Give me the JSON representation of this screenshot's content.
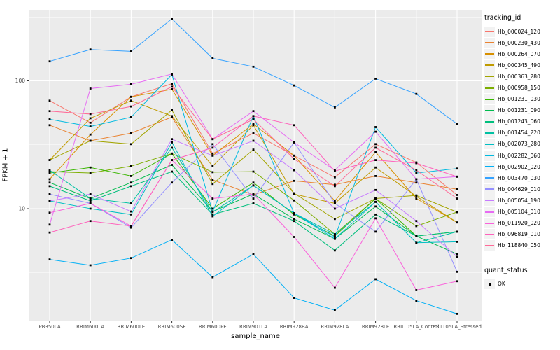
{
  "figure": {
    "panel_background": "#EBEBEB",
    "grid_color": "#FFFFFF",
    "tick_color": "#333333",
    "tick_label_color": "#4D4D4D",
    "point_color": "#000000"
  },
  "legend": {
    "tracking_title": "tracking_id",
    "quant_title": "quant_status",
    "quant_items": [
      {
        "label": "OK"
      }
    ]
  },
  "chart_data": {
    "type": "line",
    "title": "",
    "xlabel": "sample_name",
    "ylabel": "FPKM + 1",
    "y_scale": "log10",
    "ylim": [
      1.3,
      360
    ],
    "y_ticks": [
      10,
      100
    ],
    "grid": "on",
    "legend_position": "right",
    "marker": {
      "shape": "square",
      "color": "#000000",
      "legend_label": "OK"
    },
    "categories": [
      "PB350LA",
      "RRIM600LA",
      "RRIM600LE",
      "RRIM600SE",
      "RRIM600PE",
      "RRIM901LA",
      "RRIM928BA",
      "RRIM928LA",
      "RRIM928LE",
      "RRII105LA_Control",
      "RRII105LA_Stressed"
    ],
    "series": [
      {
        "name": "Hb_000024_120",
        "color": "#F8766D",
        "values": [
          70,
          47,
          75,
          95,
          27,
          39,
          26,
          17.6,
          32,
          23,
          12.8
        ]
      },
      {
        "name": "Hb_000230_430",
        "color": "#EA8331",
        "values": [
          45,
          34,
          39,
          52,
          16.8,
          12.8,
          16.5,
          15.4,
          18,
          16,
          14.2
        ]
      },
      {
        "name": "Hb_000264_070",
        "color": "#D89000",
        "values": [
          17,
          38,
          75,
          86,
          26,
          46,
          26,
          11.5,
          27.7,
          12,
          7.8
        ]
      },
      {
        "name": "Hb_000345_490",
        "color": "#C09B00",
        "values": [
          24,
          51,
          70,
          53,
          21.5,
          45,
          13,
          11,
          21,
          12.5,
          7.8
        ]
      },
      {
        "name": "Hb_000363_280",
        "color": "#A3A500",
        "values": [
          24,
          34,
          32,
          59,
          15.6,
          29,
          13.2,
          8.3,
          12,
          12.7,
          9.4
        ]
      },
      {
        "name": "Hb_000958_150",
        "color": "#7CAE00",
        "values": [
          19.5,
          19,
          21.5,
          27,
          19.3,
          19.5,
          11.6,
          6.3,
          12,
          7.3,
          9.4
        ]
      },
      {
        "name": "Hb_001231_030",
        "color": "#39B600",
        "values": [
          19,
          21,
          18,
          27,
          10,
          16,
          9,
          6.1,
          12,
          6.1,
          6.6
        ]
      },
      {
        "name": "Hb_001231_090",
        "color": "#00BB4E",
        "values": [
          16,
          12,
          16,
          22,
          9.5,
          13,
          8.3,
          5.8,
          10.4,
          6.1,
          4.4
        ]
      },
      {
        "name": "Hb_001243_060",
        "color": "#00BF7D",
        "values": [
          15,
          11.5,
          15,
          19.5,
          9,
          11,
          8,
          4.7,
          9,
          6.1,
          6.6
        ]
      },
      {
        "name": "Hb_001454_220",
        "color": "#00C1A3",
        "values": [
          20,
          12,
          11,
          30,
          9.4,
          15.2,
          9.2,
          6.3,
          11.3,
          5.4,
          6.6
        ]
      },
      {
        "name": "Hb_002073_280",
        "color": "#00BFC4",
        "values": [
          11.5,
          10,
          9,
          33,
          8.7,
          15.2,
          9.2,
          5.8,
          11.3,
          5.4,
          5.5
        ]
      },
      {
        "name": "Hb_002282_060",
        "color": "#00BAE0",
        "values": [
          50,
          44,
          52,
          112,
          9.5,
          53,
          9.2,
          6,
          43.5,
          19,
          20.6
        ]
      },
      {
        "name": "Hb_002902_020",
        "color": "#00B0F6",
        "values": [
          4,
          3.6,
          4.1,
          5.7,
          2.9,
          4.4,
          2,
          1.6,
          2.8,
          1.9,
          1.5
        ]
      },
      {
        "name": "Hb_003470_030",
        "color": "#35A2FF",
        "values": [
          142,
          176,
          170,
          306,
          150,
          129,
          92,
          62,
          104,
          79,
          46
        ]
      },
      {
        "name": "Hb_004629_010",
        "color": "#9590FF",
        "values": [
          13,
          11,
          7.1,
          16,
          32,
          12,
          33,
          11,
          6.6,
          17,
          3.2
        ]
      },
      {
        "name": "Hb_005054_190",
        "color": "#C77CFF",
        "values": [
          11.5,
          13,
          9.5,
          35,
          26,
          34,
          20,
          10,
          14,
          8,
          4.2
        ]
      },
      {
        "name": "Hb_005104_010",
        "color": "#E76BF3",
        "values": [
          7.5,
          87,
          94,
          113,
          35,
          58,
          33,
          20,
          40,
          17,
          17.8
        ]
      },
      {
        "name": "Hb_011920_020",
        "color": "#FA62DB",
        "values": [
          9.3,
          11,
          7.3,
          24,
          12,
          13,
          6,
          2.4,
          8.4,
          2.3,
          2.7
        ]
      },
      {
        "name": "Hb_096819_010",
        "color": "#FF62BC",
        "values": [
          6.5,
          8,
          7.3,
          24,
          30,
          53,
          45,
          19.7,
          24,
          22.7,
          17.8
        ]
      },
      {
        "name": "Hb_118840_050",
        "color": "#FF6A98",
        "values": [
          58,
          55,
          63,
          90,
          35,
          50,
          24.5,
          15,
          30,
          20,
          12
        ]
      }
    ]
  }
}
